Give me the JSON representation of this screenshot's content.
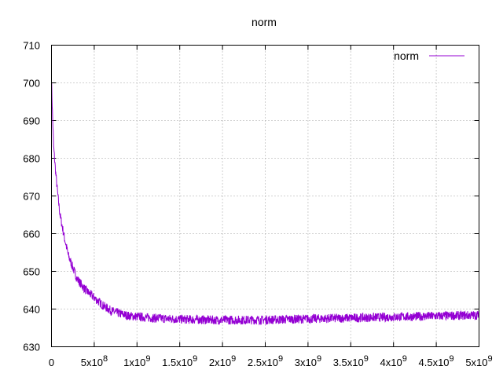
{
  "chart_data": {
    "type": "line",
    "title": "norm",
    "xlabel": "",
    "ylabel": "",
    "xlim": [
      0,
      5000000000
    ],
    "ylim": [
      630,
      710
    ],
    "grid": true,
    "legend_position": "top-right",
    "x_ticks": [
      {
        "value": 0,
        "label": "0"
      },
      {
        "value": 500000000,
        "label": "5x10",
        "exp": "8"
      },
      {
        "value": 1000000000,
        "label": "1x10",
        "exp": "9"
      },
      {
        "value": 1500000000,
        "label": "1.5x10",
        "exp": "9"
      },
      {
        "value": 2000000000,
        "label": "2x10",
        "exp": "9"
      },
      {
        "value": 2500000000,
        "label": "2.5x10",
        "exp": "9"
      },
      {
        "value": 3000000000,
        "label": "3x10",
        "exp": "9"
      },
      {
        "value": 3500000000,
        "label": "3.5x10",
        "exp": "9"
      },
      {
        "value": 4000000000,
        "label": "4x10",
        "exp": "9"
      },
      {
        "value": 4500000000,
        "label": "4.5x10",
        "exp": "9"
      },
      {
        "value": 5000000000,
        "label": "5x10",
        "exp": "9"
      }
    ],
    "y_ticks": [
      {
        "value": 630,
        "label": "630"
      },
      {
        "value": 640,
        "label": "640"
      },
      {
        "value": 650,
        "label": "650"
      },
      {
        "value": 660,
        "label": "660"
      },
      {
        "value": 670,
        "label": "670"
      },
      {
        "value": 680,
        "label": "680"
      },
      {
        "value": 690,
        "label": "690"
      },
      {
        "value": 700,
        "label": "700"
      },
      {
        "value": 710,
        "label": "710"
      }
    ],
    "series": [
      {
        "name": "norm",
        "color": "#9400d3",
        "x": [
          0,
          10000000,
          25000000,
          50000000,
          75000000,
          100000000,
          150000000,
          200000000,
          250000000,
          300000000,
          400000000,
          500000000,
          600000000,
          700000000,
          800000000,
          900000000,
          1000000000,
          1100000000,
          1200000000,
          1300000000,
          1400000000,
          1500000000,
          1700000000,
          1900000000,
          2000000000,
          2200000000,
          2400000000,
          2600000000,
          2800000000,
          3000000000,
          3200000000,
          3400000000,
          3600000000,
          3800000000,
          4000000000,
          4200000000,
          4400000000,
          4600000000,
          4800000000,
          5000000000
        ],
        "y": [
          701,
          693,
          683,
          676,
          670,
          665,
          659,
          654,
          651,
          648,
          645,
          643,
          641,
          639.5,
          638.8,
          638.2,
          638,
          637.8,
          637.6,
          637.5,
          637.4,
          637.3,
          637.2,
          637.1,
          637.1,
          637.1,
          637.1,
          637.2,
          637.3,
          637.4,
          637.5,
          637.6,
          637.7,
          637.8,
          637.9,
          638,
          638.1,
          638.2,
          638.3,
          638.4
        ],
        "noise": 1.2
      }
    ]
  }
}
